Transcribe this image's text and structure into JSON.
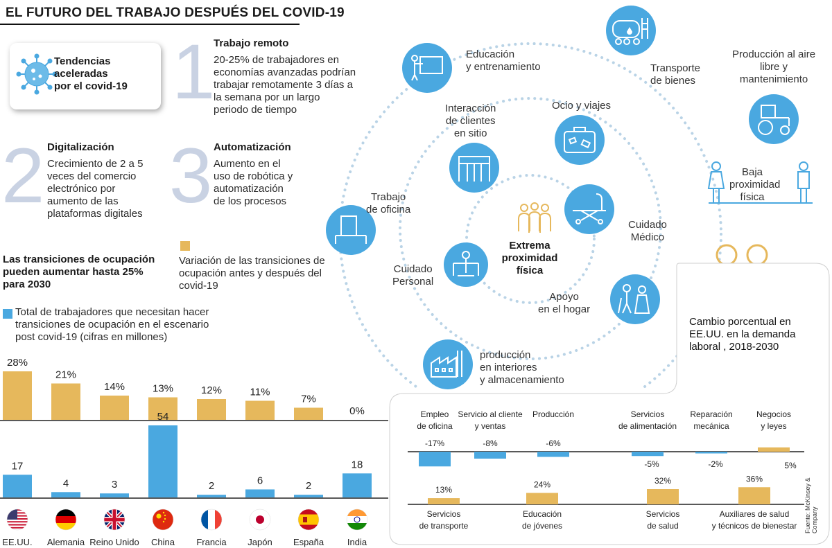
{
  "title": "EL FUTURO DEL TRABAJO DESPUÉS DEL COVID-19",
  "trends_box": {
    "line1": "Tendencias",
    "line2": "aceleradas",
    "line3": "por el covid-19"
  },
  "trends": [
    {
      "number": "1",
      "heading": "Trabajo remoto",
      "text": [
        "20-25% de trabajadores en",
        "economías avanzadas podrían",
        "trabajar remotamente 3 días a",
        "la semana por un largo",
        "periodo de tiempo"
      ]
    },
    {
      "number": "2",
      "heading": "Digitalización",
      "text": [
        "Crecimiento de 2 a 5",
        "veces del comercio",
        "electrónico por",
        "aumento de las",
        "plataformas digitales"
      ]
    },
    {
      "number": "3",
      "heading": "Automatización",
      "text": [
        "Aumento en el",
        "uso de robótica y",
        "automatización",
        "de los procesos"
      ]
    }
  ],
  "transitions_heading": [
    "Las transiciones de ocupación",
    "pueden aumentar hasta 25%",
    "para 2030"
  ],
  "legend": {
    "gold": [
      "Variación de las transiciones de",
      "ocupación antes y después del",
      "covid-19"
    ],
    "blue": [
      "Total de trabajadores que necesitan hacer",
      "transiciones de ocupación en el escenario",
      "post covid-19 (cifras en millones)"
    ]
  },
  "colors": {
    "gold": "#e6b85c",
    "blue": "#4aa8e0",
    "grey_number": "#c9d2e3",
    "dots": "#b9d3e6"
  },
  "chart_data": [
    {
      "type": "bar",
      "categories": [
        "EE.UU.",
        "Alemania",
        "Reino Unido",
        "China",
        "Francia",
        "Japón",
        "España",
        "India"
      ],
      "flags": [
        "us-flag-icon",
        "germany-flag-icon",
        "uk-flag-icon",
        "china-flag-icon",
        "france-flag-icon",
        "japan-flag-icon",
        "spain-flag-icon",
        "india-flag-icon"
      ],
      "series": [
        {
          "name": "Variación de las transiciones de ocupación antes y después del covid-19",
          "values": [
            28,
            21,
            14,
            13,
            12,
            11,
            7,
            0
          ],
          "labels": [
            "28%",
            "21%",
            "14%",
            "13%",
            "12%",
            "11%",
            "7%",
            "0%"
          ],
          "color": "#e6b85c"
        },
        {
          "name": "Total de trabajadores que necesitan hacer transiciones de ocupación en el escenario post covid-19 (cifras en millones)",
          "values": [
            17,
            4,
            3,
            54,
            2,
            6,
            2,
            18
          ],
          "labels": [
            "17",
            "4",
            "3",
            "54",
            "2",
            "6",
            "2",
            "18"
          ],
          "color": "#4aa8e0"
        }
      ]
    },
    {
      "type": "bar",
      "title": [
        "Cambio porcentual en",
        "EE.UU. en la demanda",
        "laboral , 2018-2030"
      ],
      "categories": [
        [
          "Empleo",
          "de oficina"
        ],
        [
          "Servicio al cliente",
          "y ventas"
        ],
        [
          "Producción"
        ],
        [
          "Servicios",
          "de alimentación"
        ],
        [
          "Reparación",
          "mecánica"
        ],
        [
          "Negocios",
          "y leyes"
        ],
        [
          "Servicios",
          "de transporte"
        ],
        [
          "Educación",
          "de jóvenes"
        ],
        [
          "Servicios",
          "de salud"
        ],
        [
          "Auxiliares de salud",
          "y técnicos de bienestar"
        ]
      ],
      "values": [
        -17,
        -8,
        -6,
        -5,
        -2,
        5,
        13,
        24,
        32,
        36
      ],
      "value_labels": [
        "-17%",
        "-8%",
        "-6%",
        "-5%",
        "-2%",
        "5%",
        "13%",
        "24%",
        "32%",
        "36%"
      ],
      "negative_color": "#4aa8e0",
      "positive_color": "#e6b85c",
      "source": "Fuente: McKinsey & Company"
    }
  ],
  "proximity": {
    "outer": [
      "Educación",
      "y entrenamiento",
      "Transporte",
      "de bienes",
      "Producción al aire",
      "libre y",
      "mantenimiento",
      "producción",
      "en interiores",
      "y almacenamiento",
      "Trabajo",
      "de oficina"
    ],
    "middle": [
      "Interacción",
      "de clientes",
      "en sitio",
      "Ocio y viajes",
      "Cuidado",
      "Médico",
      "Apoyo",
      "en el hogar",
      "Cuidado",
      "Personal"
    ],
    "center": [
      "Extrema",
      "proximidad",
      "física"
    ],
    "low": [
      "Baja",
      "proximidad",
      "física"
    ]
  }
}
